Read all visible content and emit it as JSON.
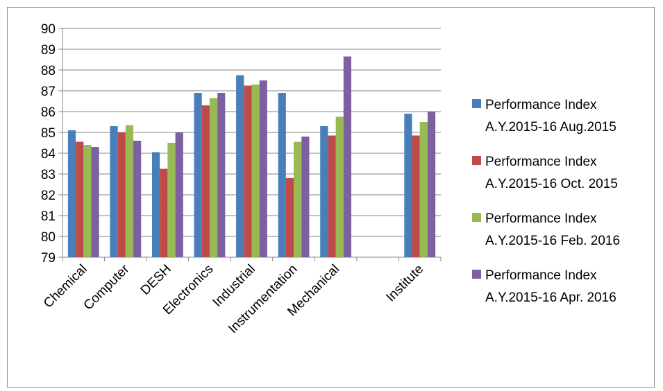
{
  "chart_data": {
    "type": "bar",
    "title": "",
    "xlabel": "",
    "ylabel": "",
    "ylim": [
      79,
      90
    ],
    "yticks": [
      79,
      80,
      81,
      82,
      83,
      84,
      85,
      86,
      87,
      88,
      89,
      90
    ],
    "grid": true,
    "legend_position": "right",
    "categories": [
      "Chemical",
      "Computer",
      "DESH",
      "Electronics",
      "Industrial",
      "Instrumentation",
      "Mechanical",
      "",
      "Institute"
    ],
    "series": [
      {
        "name_line1": "Performance Index",
        "name_line2": "A.Y.2015-16 Aug.2015",
        "color": "#4a7ebb",
        "values": [
          85.1,
          85.3,
          84.05,
          86.9,
          87.75,
          86.9,
          85.3,
          null,
          85.9
        ]
      },
      {
        "name_line1": "Performance Index",
        "name_line2": "A.Y.2015-16 Oct. 2015",
        "color": "#be4b48",
        "values": [
          84.55,
          85.0,
          83.25,
          86.3,
          87.25,
          82.8,
          84.85,
          null,
          84.85
        ]
      },
      {
        "name_line1": "Performance Index",
        "name_line2": "A.Y.2015-16 Feb. 2016",
        "color": "#98b954",
        "values": [
          84.4,
          85.35,
          84.5,
          86.65,
          87.3,
          84.55,
          85.75,
          null,
          85.5
        ]
      },
      {
        "name_line1": "Performance Index",
        "name_line2": "A.Y.2015-16 Apr. 2016",
        "color": "#7d60a0",
        "values": [
          84.3,
          84.6,
          85.0,
          86.9,
          87.5,
          84.8,
          88.65,
          null,
          86.0
        ]
      }
    ]
  }
}
